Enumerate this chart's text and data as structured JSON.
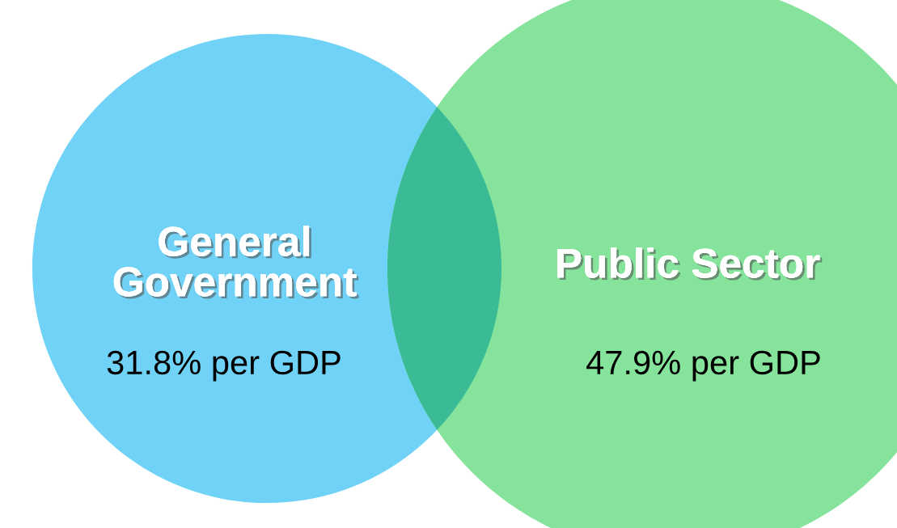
{
  "chart_data": {
    "type": "other",
    "categories": [
      "General Government",
      "Public Sector"
    ],
    "values": [
      31.8,
      47.9
    ],
    "value_labels": [
      "31.8% per GDP",
      "47.9% per GDP"
    ],
    "colors": [
      "#6fd2f6",
      "#86e39b"
    ]
  }
}
